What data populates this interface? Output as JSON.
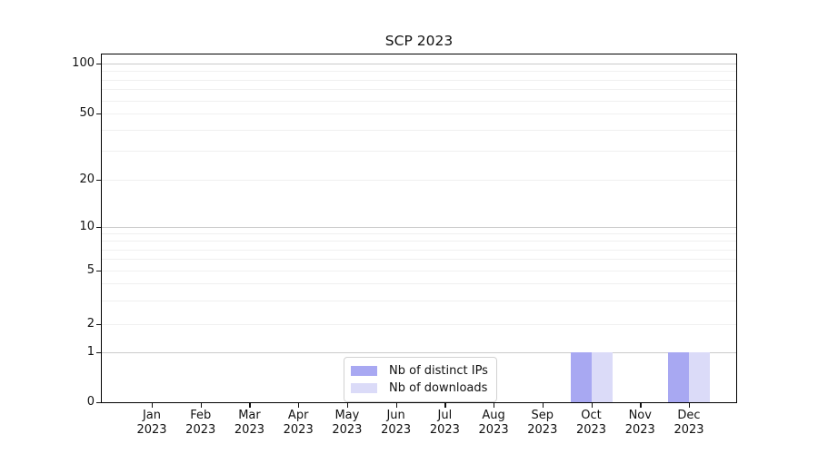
{
  "chart_data": {
    "type": "bar",
    "title": "SCP 2023",
    "categories": [
      "Jan 2023",
      "Feb 2023",
      "Mar 2023",
      "Apr 2023",
      "May 2023",
      "Jun 2023",
      "Jul 2023",
      "Aug 2023",
      "Sep 2023",
      "Oct 2023",
      "Nov 2023",
      "Dec 2023"
    ],
    "series": [
      {
        "name": "Nb of distinct IPs",
        "color": "#a8a8f2",
        "values": [
          0,
          0,
          0,
          0,
          0,
          0,
          0,
          0,
          0,
          1,
          0,
          1
        ]
      },
      {
        "name": "Nb of downloads",
        "color": "#dbdbf8",
        "values": [
          0,
          0,
          0,
          0,
          0,
          0,
          0,
          0,
          0,
          1,
          0,
          1
        ]
      }
    ],
    "xlabel": "",
    "ylabel": "",
    "y_ticks": [
      0,
      1,
      2,
      5,
      10,
      20,
      50,
      100
    ],
    "ylim": [
      0,
      100
    ],
    "y_scale": "symlog",
    "grid": "horizontal major and minor gridlines",
    "legend_position": "lower center, inside plot"
  },
  "colors": {
    "major_grid": "#cbcbcb",
    "minor_grid": "#f0f0f0",
    "spine": "#000000",
    "text": "#111111",
    "legend_border": "#d2d2d2",
    "background": "#ffffff"
  }
}
